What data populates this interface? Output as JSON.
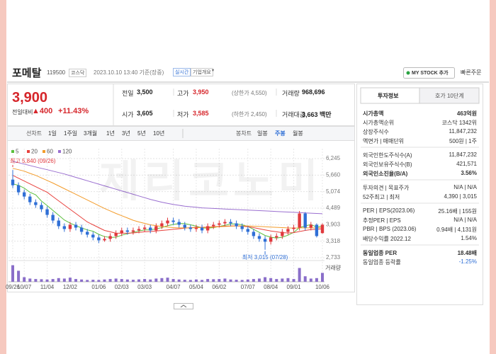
{
  "header": {
    "name": "포메탈",
    "code": "119500",
    "market": "코스닥",
    "time": "2023.10.10 13:40 기준(장중)",
    "realtime": "실시간",
    "overview": "기업개요",
    "mystock": "MY STOCK 추가",
    "quick_order": "빠른주문"
  },
  "price": {
    "current": "3,900",
    "change_label": "전일대비",
    "change": "▲400",
    "change_rate": "+11.43%"
  },
  "quote": [
    [
      {
        "label": "전일",
        "value": "3,500"
      },
      {
        "label": "고가",
        "value": "3,950",
        "extra": "(상한가 4,550)"
      },
      {
        "label": "거래량",
        "value": "968,696"
      }
    ],
    [
      {
        "label": "시가",
        "value": "3,605"
      },
      {
        "label": "저가",
        "value": "3,585",
        "extra": "(하한가 2,450)"
      },
      {
        "label": "거래대금",
        "value": "3,663 백만"
      }
    ]
  ],
  "periods": {
    "line_label": "선차트",
    "line": [
      "1일",
      "1주일",
      "3개월",
      "1년",
      "3년",
      "5년",
      "10년"
    ],
    "candle_label": "봉차트",
    "candle": [
      "일봉",
      "주봉",
      "월봉"
    ]
  },
  "watermark": "제리코노미",
  "chart_data": {
    "type": "candlestick",
    "grid": true,
    "categories": [
      "09/26",
      null,
      "10/07",
      null,
      null,
      null,
      "11/04",
      null,
      null,
      null,
      "12/02",
      null,
      null,
      null,
      null,
      "01/06",
      null,
      null,
      null,
      "02/03",
      null,
      null,
      null,
      "03/03",
      null,
      null,
      null,
      null,
      "04/07",
      null,
      null,
      null,
      "05/04",
      null,
      null,
      null,
      "06/02",
      null,
      null,
      null,
      null,
      "07/07",
      null,
      null,
      null,
      "08/04",
      null,
      null,
      null,
      "09/01",
      null,
      null,
      null,
      null,
      "10/06"
    ],
    "ohlc": [
      [
        5500,
        5840,
        5200,
        5300
      ],
      [
        5300,
        5400,
        4950,
        5050
      ],
      [
        5050,
        5150,
        4800,
        4900
      ],
      [
        4900,
        5000,
        4600,
        4700
      ],
      [
        4700,
        4800,
        4500,
        4600
      ],
      [
        4600,
        4700,
        4350,
        4450
      ],
      [
        4450,
        4550,
        4150,
        4250
      ],
      [
        4250,
        4350,
        3950,
        4050
      ],
      [
        4050,
        4150,
        3750,
        3850
      ],
      [
        3850,
        3950,
        3650,
        3750
      ],
      [
        3750,
        4000,
        3650,
        3900
      ],
      [
        3900,
        4000,
        3700,
        3800
      ],
      [
        3800,
        3900,
        3550,
        3650
      ],
      [
        3650,
        3750,
        3450,
        3550
      ],
      [
        3550,
        3650,
        3350,
        3450
      ],
      [
        3450,
        3550,
        3250,
        3350
      ],
      [
        3350,
        3500,
        3300,
        3400
      ],
      [
        3400,
        3600,
        3300,
        3500
      ],
      [
        3500,
        3700,
        3400,
        3600
      ],
      [
        3600,
        3800,
        3500,
        3700
      ],
      [
        3700,
        3800,
        3550,
        3650
      ],
      [
        3650,
        3800,
        3550,
        3700
      ],
      [
        3700,
        3850,
        3600,
        3750
      ],
      [
        3750,
        3900,
        3650,
        3800
      ],
      [
        3800,
        3900,
        3600,
        3700
      ],
      [
        3700,
        3950,
        3600,
        3850
      ],
      [
        3850,
        4050,
        3750,
        3950
      ],
      [
        3950,
        4150,
        3850,
        4050
      ],
      [
        4050,
        4150,
        3900,
        4000
      ],
      [
        4000,
        4100,
        3800,
        3900
      ],
      [
        3900,
        4000,
        3700,
        3800
      ],
      [
        3800,
        3900,
        3650,
        3750
      ],
      [
        3750,
        3900,
        3650,
        3800
      ],
      [
        3800,
        3900,
        3600,
        3700
      ],
      [
        3700,
        3950,
        3600,
        3850
      ],
      [
        3850,
        4000,
        3750,
        3900
      ],
      [
        3900,
        4050,
        3800,
        3950
      ],
      [
        3950,
        4100,
        3850,
        4000
      ],
      [
        4000,
        4100,
        3850,
        3950
      ],
      [
        3950,
        4050,
        3750,
        3850
      ],
      [
        3850,
        3950,
        3650,
        3750
      ],
      [
        3750,
        3850,
        3550,
        3650
      ],
      [
        3650,
        3750,
        3400,
        3500
      ],
      [
        3500,
        3600,
        3300,
        3400
      ],
      [
        3400,
        3500,
        3015,
        3300
      ],
      [
        3300,
        3550,
        3200,
        3450
      ],
      [
        3450,
        3600,
        3350,
        3500
      ],
      [
        3500,
        3750,
        3400,
        3650
      ],
      [
        3650,
        3850,
        3550,
        3750
      ],
      [
        3750,
        3900,
        3650,
        3800
      ],
      [
        3800,
        4390,
        3700,
        4300
      ],
      [
        4300,
        4350,
        3700,
        3800
      ],
      [
        3800,
        4000,
        3700,
        3900
      ],
      [
        3900,
        3950,
        3450,
        3500
      ],
      [
        3605,
        3950,
        3585,
        3900
      ]
    ],
    "up_color": "#e0393e",
    "down_color": "#2f6fd6",
    "series": [
      {
        "name": "5",
        "color": "#5bbf3c",
        "values": [
          5350,
          5300,
          5200,
          5050,
          4960,
          4740,
          4580,
          4410,
          4240,
          4070,
          3960,
          3870,
          3790,
          3720,
          3670,
          3560,
          3480,
          3450,
          3460,
          3530,
          3580,
          3630,
          3680,
          3720,
          3720,
          3760,
          3800,
          3870,
          3910,
          3950,
          3940,
          3900,
          3850,
          3790,
          3780,
          3800,
          3840,
          3880,
          3930,
          3930,
          3900,
          3840,
          3740,
          3630,
          3520,
          3460,
          3430,
          3460,
          3530,
          3630,
          3800,
          3860,
          3910,
          3820,
          3860
        ]
      },
      {
        "name": "20",
        "color": "#e8413d",
        "values": [
          5650,
          5550,
          5450,
          5350,
          5250,
          5150,
          5050,
          4900,
          4750,
          4600,
          4450,
          4300,
          4150,
          4000,
          3900,
          3800,
          3700,
          3650,
          3600,
          3600,
          3600,
          3610,
          3630,
          3650,
          3660,
          3680,
          3700,
          3720,
          3740,
          3760,
          3780,
          3800,
          3810,
          3810,
          3820,
          3830,
          3840,
          3850,
          3860,
          3860,
          3850,
          3830,
          3800,
          3760,
          3720,
          3680,
          3650,
          3620,
          3610,
          3620,
          3660,
          3700,
          3730,
          3740,
          3760
        ]
      },
      {
        "name": "60",
        "color": "#f39c2b",
        "values": [
          5900,
          5850,
          5800,
          5720,
          5650,
          5560,
          5470,
          5380,
          5280,
          5180,
          5080,
          4980,
          4880,
          4780,
          4680,
          4580,
          4480,
          4390,
          4300,
          4220,
          4140,
          4060,
          4000,
          3950,
          3900,
          3870,
          3840,
          3820,
          3800,
          3790,
          3790,
          3790,
          3800,
          3800,
          3810,
          3820,
          3830,
          3840,
          3850,
          3860,
          3860,
          3860,
          3850,
          3840,
          3830,
          3820,
          3810,
          3800,
          3790,
          3780,
          3790,
          3790,
          3790,
          3790,
          3800
        ]
      },
      {
        "name": "120",
        "color": "#9a6fd0",
        "values": [
          6150,
          6100,
          6050,
          6000,
          5950,
          5900,
          5850,
          5800,
          5750,
          5700,
          5640,
          5580,
          5520,
          5460,
          5400,
          5340,
          5280,
          5220,
          5160,
          5100,
          5040,
          4980,
          4920,
          4860,
          4800,
          4750,
          4700,
          4660,
          4620,
          4590,
          4560,
          4540,
          4520,
          4500,
          4490,
          4480,
          4470,
          4460,
          4450,
          4440,
          4430,
          4420,
          4410,
          4400,
          4390,
          4380,
          4370,
          4360,
          4350,
          4340,
          4330,
          4320,
          4310,
          4300,
          4290
        ]
      }
    ],
    "ylim": [
      2733,
      6245
    ],
    "yticks": [
      {
        "value": 6245,
        "label": "6,245"
      },
      {
        "value": 5660,
        "label": "5,660"
      },
      {
        "value": 5074,
        "label": "5,074"
      },
      {
        "value": 4489,
        "label": "4,489"
      },
      {
        "value": 3903,
        "label": "3,903"
      },
      {
        "value": 3318,
        "label": "3,318"
      },
      {
        "value": 2733,
        "label": "2,733"
      }
    ],
    "annotations": {
      "high": "최고 5,840 (09/26)",
      "low": "최저 3,015 (07/28)"
    },
    "volume_label": "거래량",
    "volume_color": "#8a6ec9",
    "volume_ylim": [
      0,
      2000000
    ],
    "volume": [
      1800000,
      1200000,
      500000,
      350000,
      300000,
      280000,
      250000,
      300000,
      400000,
      350000,
      450000,
      300000,
      250000,
      200000,
      220000,
      200000,
      250000,
      300000,
      350000,
      300000,
      250000,
      220000,
      260000,
      300000,
      250000,
      350000,
      400000,
      450000,
      300000,
      250000,
      220000,
      200000,
      250000,
      200000,
      300000,
      280000,
      300000,
      350000,
      250000,
      220000,
      200000,
      250000,
      300000,
      350000,
      500000,
      400000,
      300000,
      350000,
      400000,
      300000,
      1500000,
      600000,
      350000,
      400000,
      968696
    ]
  },
  "info": {
    "tabs": [
      "투자정보",
      "호가 10단계"
    ],
    "groups": [
      [
        [
          "시가총액",
          "463억원"
        ],
        [
          "시가총액순위",
          "코스닥 1342위"
        ],
        [
          "상장주식수",
          "11,847,232"
        ],
        [
          "액면가 | 매매단위",
          "500원 | 1주"
        ]
      ],
      [
        [
          "외국인한도주식수(A)",
          "11,847,232"
        ],
        [
          "외국인보유주식수(B)",
          "421,571"
        ],
        [
          "외국인소진율(B/A)",
          "3.56%"
        ]
      ],
      [
        [
          "투자의견 | 목표주가",
          "N/A | N/A"
        ],
        [
          "52주최고 | 최저",
          "4,390 | 3,015"
        ]
      ],
      [
        [
          "PER | EPS(2023.06)",
          "25.16배 | 155원"
        ],
        [
          "추정PER | EPS",
          "N/A | N/A"
        ],
        [
          "PBR | BPS (2023.06)",
          "0.94배 | 4,131원"
        ],
        [
          "배당수익률 2022.12",
          "1.54%"
        ]
      ],
      [
        [
          "동일업종 PER",
          "18.48배"
        ],
        [
          "동일업종 등락률",
          "-1.25%"
        ]
      ]
    ]
  }
}
